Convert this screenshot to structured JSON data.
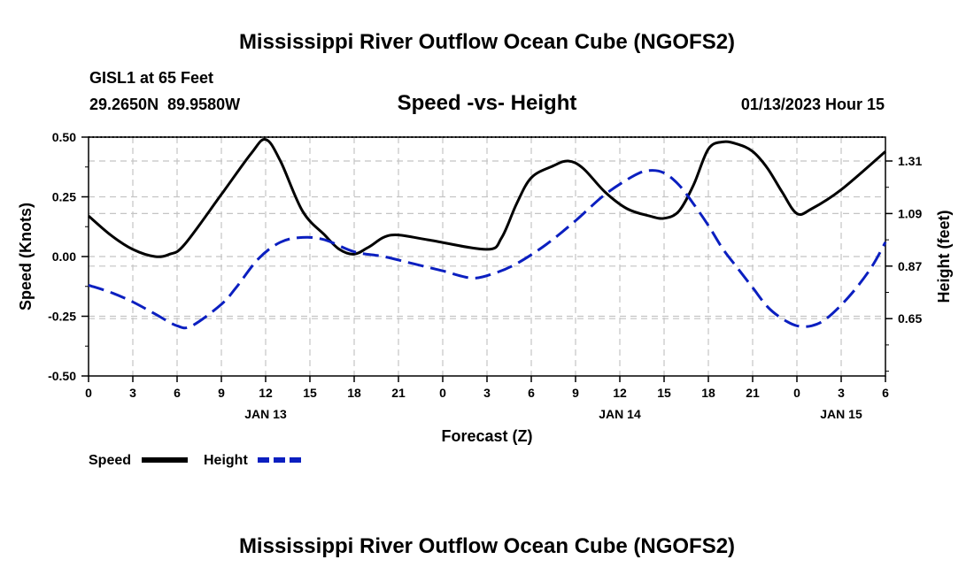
{
  "chart_data": {
    "type": "line",
    "title": "Mississippi River Outflow Ocean Cube (NGOFS2)",
    "footer_title": "Mississippi River Outflow Ocean Cube (NGOFS2)",
    "station": "GISL1 at 65 Feet",
    "coordinates": "29.2650N  89.9580W",
    "subtitle": "Speed -vs- Height",
    "timestamp": "01/13/2023 Hour 15",
    "xlabel": "Forecast (Z)",
    "ylabel_left": "Speed (Knots)",
    "ylabel_right": "Height (feet)",
    "xlim": [
      0,
      54
    ],
    "ylim_left": [
      -0.5,
      0.5
    ],
    "ylim_right": [
      0.41,
      1.41
    ],
    "x_ticks": [
      0,
      3,
      6,
      9,
      12,
      15,
      18,
      21,
      24,
      27,
      30,
      33,
      36,
      39,
      42,
      45,
      48,
      51,
      54
    ],
    "x_tick_labels": [
      "0",
      "3",
      "6",
      "9",
      "12",
      "15",
      "18",
      "21",
      "0",
      "3",
      "6",
      "9",
      "12",
      "15",
      "18",
      "21",
      "0",
      "3",
      "6"
    ],
    "left_ticks": [
      -0.5,
      -0.25,
      0.0,
      0.25,
      0.5
    ],
    "left_tick_labels": [
      "-0.50",
      "-0.25",
      "0.00",
      "0.25",
      "0.50"
    ],
    "right_ticks": [
      0.65,
      0.87,
      1.09,
      1.31
    ],
    "right_tick_labels": [
      "0.65",
      "0.87",
      "1.09",
      "1.31"
    ],
    "date_labels": [
      {
        "x": 12,
        "label": "JAN 13"
      },
      {
        "x": 36,
        "label": "JAN 14"
      },
      {
        "x": 51,
        "label": "JAN 15"
      }
    ],
    "grid": true,
    "series": [
      {
        "name": "Speed",
        "axis": "left",
        "color": "#000000",
        "dash": "solid",
        "points": [
          [
            0,
            0.17
          ],
          [
            1.5,
            0.09
          ],
          [
            3,
            0.03
          ],
          [
            4.5,
            0.0
          ],
          [
            5.5,
            0.01
          ],
          [
            6.5,
            0.05
          ],
          [
            9,
            0.26
          ],
          [
            11,
            0.43
          ],
          [
            12,
            0.49
          ],
          [
            13,
            0.4
          ],
          [
            14.5,
            0.19
          ],
          [
            16,
            0.09
          ],
          [
            17,
            0.03
          ],
          [
            18,
            0.01
          ],
          [
            19,
            0.04
          ],
          [
            20.5,
            0.09
          ],
          [
            23,
            0.07
          ],
          [
            27,
            0.03
          ],
          [
            28,
            0.08
          ],
          [
            29,
            0.22
          ],
          [
            30,
            0.33
          ],
          [
            31.5,
            0.38
          ],
          [
            32.5,
            0.4
          ],
          [
            33.5,
            0.37
          ],
          [
            35,
            0.27
          ],
          [
            36.5,
            0.2
          ],
          [
            38,
            0.17
          ],
          [
            39,
            0.16
          ],
          [
            40,
            0.19
          ],
          [
            41,
            0.3
          ],
          [
            42,
            0.45
          ],
          [
            43,
            0.48
          ],
          [
            44,
            0.47
          ],
          [
            45,
            0.44
          ],
          [
            46,
            0.37
          ],
          [
            47,
            0.27
          ],
          [
            48,
            0.18
          ],
          [
            49,
            0.2
          ],
          [
            51,
            0.28
          ],
          [
            54,
            0.44
          ]
        ]
      },
      {
        "name": "Height",
        "axis": "right",
        "color": "#0b1fc0",
        "dash": "dashed",
        "points": [
          [
            0,
            0.79
          ],
          [
            1.5,
            0.76
          ],
          [
            3,
            0.72
          ],
          [
            4.5,
            0.67
          ],
          [
            6,
            0.62
          ],
          [
            7,
            0.62
          ],
          [
            9,
            0.71
          ],
          [
            10,
            0.78
          ],
          [
            11.5,
            0.9
          ],
          [
            13,
            0.97
          ],
          [
            14.5,
            0.99
          ],
          [
            16,
            0.98
          ],
          [
            18,
            0.93
          ],
          [
            20,
            0.91
          ],
          [
            22,
            0.88
          ],
          [
            24,
            0.85
          ],
          [
            26,
            0.82
          ],
          [
            27.5,
            0.84
          ],
          [
            29,
            0.88
          ],
          [
            31,
            0.96
          ],
          [
            33,
            1.06
          ],
          [
            35,
            1.17
          ],
          [
            37,
            1.25
          ],
          [
            38,
            1.27
          ],
          [
            39,
            1.26
          ],
          [
            40,
            1.21
          ],
          [
            41,
            1.13
          ],
          [
            42,
            1.04
          ],
          [
            43,
            0.94
          ],
          [
            44,
            0.86
          ],
          [
            45,
            0.78
          ],
          [
            46,
            0.7
          ],
          [
            47,
            0.65
          ],
          [
            48,
            0.62
          ],
          [
            49,
            0.62
          ],
          [
            50,
            0.65
          ],
          [
            51.5,
            0.74
          ],
          [
            53,
            0.86
          ],
          [
            54,
            0.97
          ]
        ]
      }
    ]
  },
  "legend": {
    "items": [
      {
        "label": "Speed",
        "color": "#000000"
      },
      {
        "label": "Height",
        "color": "#0b1fc0"
      }
    ]
  }
}
